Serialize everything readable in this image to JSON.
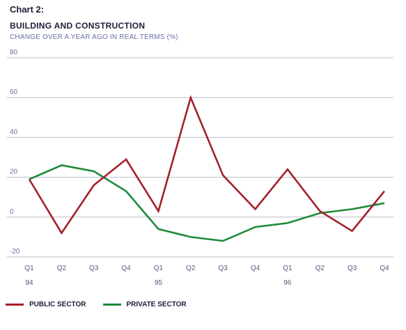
{
  "chart_data": {
    "type": "line",
    "title": "Chart 2:",
    "subtitle": "BUILDING AND CONSTRUCTION",
    "ylabel": "CHANGE OVER A YEAR AGO IN REAL TERMS (%)",
    "xlabel": "",
    "ylim": [
      -20,
      80
    ],
    "yticks": [
      -20,
      0,
      20,
      40,
      60,
      80
    ],
    "grid": true,
    "legend_position": "bottom-left",
    "categories": [
      "Q1",
      "Q2",
      "Q3",
      "Q4",
      "Q1",
      "Q2",
      "Q3",
      "Q4",
      "Q1",
      "Q2",
      "Q3",
      "Q4"
    ],
    "years": [
      {
        "label": "94",
        "index": 0
      },
      {
        "label": "95",
        "index": 4
      },
      {
        "label": "96",
        "index": 8
      }
    ],
    "series": [
      {
        "name": "PUBLIC SECTOR",
        "color": "#a31f2a",
        "values": [
          19,
          -8,
          16,
          29,
          3,
          60,
          21,
          4,
          24,
          3,
          -7,
          13
        ]
      },
      {
        "name": "PRIVATE SECTOR",
        "color": "#1f8a3a",
        "values": [
          19,
          26,
          23,
          13,
          -6,
          -10,
          -12,
          -5,
          -3,
          2,
          4,
          7
        ]
      }
    ]
  }
}
